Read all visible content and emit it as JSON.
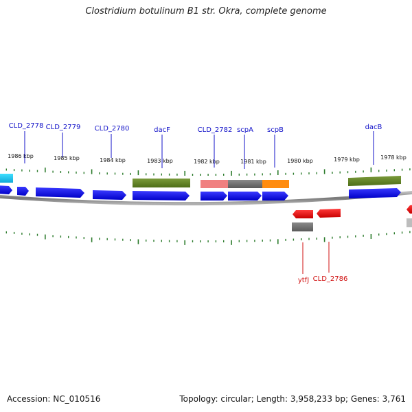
{
  "title": "Clostridium botulinum B1 str. Okra, complete genome",
  "footer": {
    "accession": "Accession: NC_010516",
    "summary": "Topology: circular; Length: 3,958,233 bp; Genes: 3,761"
  },
  "colors": {
    "forward_gene": "#0a0ae6",
    "reverse_gene": "#e60a0a",
    "tick": "#2a7a2a",
    "backbone": "#8a8a8a",
    "label_forward": "#1010c8",
    "label_reverse": "#d01010"
  },
  "axis": {
    "unit": "kbp",
    "ticks": [
      "1986 kbp",
      "1985 kbp",
      "1984 kbp",
      "1983 kbp",
      "1982 kbp",
      "1981 kbp",
      "1980 kbp",
      "1979 kbp",
      "1978 kbp"
    ]
  },
  "gene_labels_top": [
    "CLD_2778",
    "CLD_2779",
    "CLD_2780",
    "dacF",
    "CLD_2782",
    "scpA",
    "scpB",
    "dacB"
  ],
  "gene_labels_bottom": [
    "ytfJ",
    "CLD_2786"
  ]
}
